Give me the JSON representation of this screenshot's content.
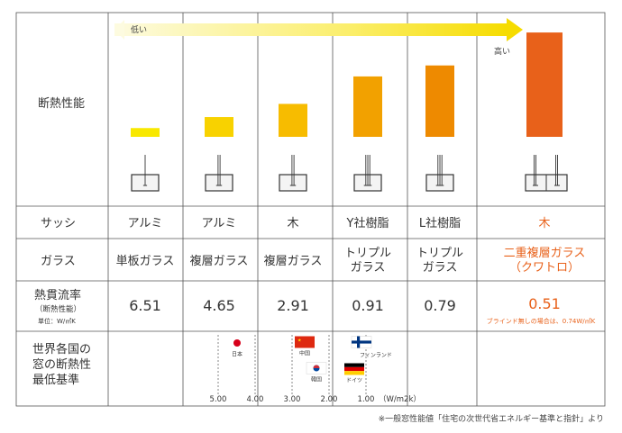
{
  "row_labels": {
    "performance": "断熱性能",
    "sash": "サッシ",
    "glass": "ガラス",
    "heat_flow_main": "熱貫流率",
    "heat_flow_sub": "（断熱性能）",
    "heat_flow_unit": "単位：W/㎡K",
    "world_line1": "世界各国の",
    "world_line2": "窓の断熱性",
    "world_line3": "最低基準"
  },
  "arrow": {
    "low": "低い",
    "high": "高い"
  },
  "chart_data": {
    "type": "bar",
    "categories": [
      "アルミ / 単板ガラス",
      "アルミ / 複層ガラス",
      "木 / 複層ガラス",
      "Y社樹脂 / トリプルガラス",
      "L社樹脂 / トリプルガラス",
      "木 / 二重複層ガラス（クワトロ）"
    ],
    "values": [
      6.51,
      4.65,
      2.91,
      0.91,
      0.79,
      0.51
    ],
    "bar_levels": [
      0.08,
      0.18,
      0.3,
      0.55,
      0.65,
      0.95
    ],
    "bar_colors": [
      "#f8e800",
      "#f8d200",
      "#f7bc00",
      "#f2a100",
      "#ee8a00",
      "#e8611a"
    ],
    "sash": [
      "アルミ",
      "アルミ",
      "木",
      "Y社樹脂",
      "L社樹脂",
      "木"
    ],
    "glass": [
      [
        "単板ガラス"
      ],
      [
        "複層ガラス"
      ],
      [
        "複層ガラス"
      ],
      [
        "トリプル",
        "ガラス"
      ],
      [
        "トリプル",
        "ガラス"
      ],
      [
        "二重複層ガラス",
        "（クワトロ）"
      ]
    ],
    "value_labels": [
      "6.51",
      "4.65",
      "2.91",
      "0.91",
      "0.79",
      "0.51"
    ],
    "highlight_index": 5,
    "highlight_color": "#e8611a",
    "note": "ブラインド無しの場合は、0.74W/㎡K",
    "axis_ticks": [
      5.0,
      4.0,
      3.0,
      2.0,
      1.0
    ],
    "axis_tick_labels": [
      "5.00",
      "4.00",
      "3.00",
      "2.00",
      "1.00"
    ],
    "axis_unit": "（W/m2k）",
    "countries": [
      {
        "name": "日本",
        "value": 4.65,
        "flag": "jp"
      },
      {
        "name": "中国",
        "value": 2.5,
        "flag": "cn"
      },
      {
        "name": "韓国",
        "value": 2.1,
        "flag": "kr"
      },
      {
        "name": "フィンランド",
        "value": 1.0,
        "flag": "fi"
      },
      {
        "name": "ドイツ",
        "value": 1.3,
        "flag": "de"
      }
    ]
  },
  "footnote": "※一般窓性能値「住宅の次世代省エネルギー基準と指針」より"
}
